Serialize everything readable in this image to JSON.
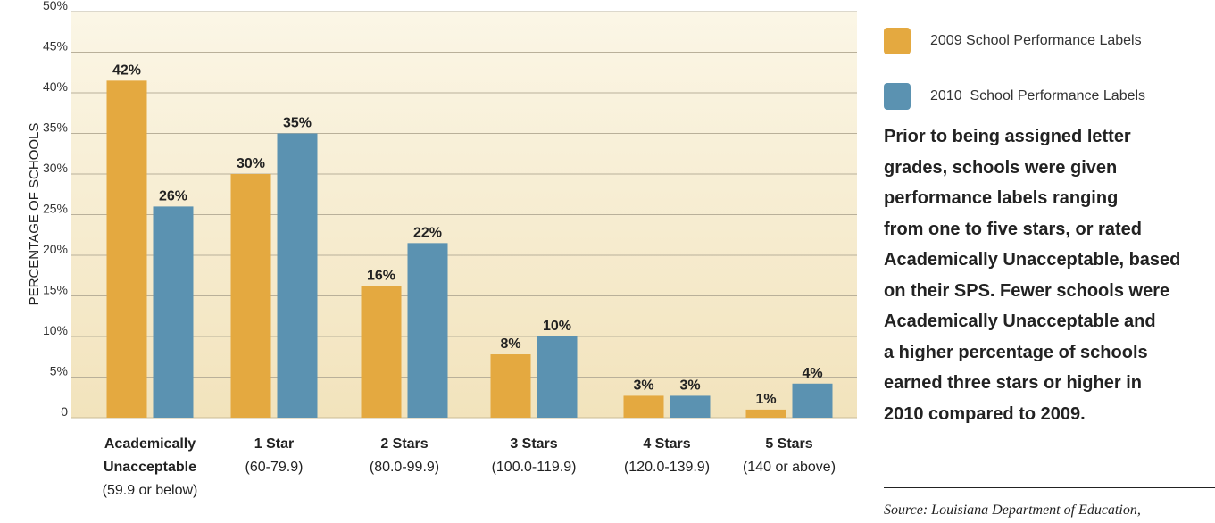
{
  "chart_data": {
    "type": "bar",
    "ylabel": "PERCENTAGE OF SCHOOLS",
    "ylim": [
      0,
      50
    ],
    "y_ticks": [
      "0",
      "5%",
      "10%",
      "15%",
      "20%",
      "25%",
      "30%",
      "35%",
      "40%",
      "45%",
      "50%"
    ],
    "grid": true,
    "legend_position": "right",
    "categories": [
      {
        "name": "Academically Unacceptable",
        "name_lines": [
          "Academically",
          "Unacceptable"
        ],
        "range": "(59.9 or below)"
      },
      {
        "name": "1 Star",
        "name_lines": [
          "1 Star"
        ],
        "range": "(60-79.9)"
      },
      {
        "name": "2 Stars",
        "name_lines": [
          "2 Stars"
        ],
        "range": "(80.0-99.9)"
      },
      {
        "name": "3 Stars",
        "name_lines": [
          "3 Stars"
        ],
        "range": "(100.0-119.9)"
      },
      {
        "name": "4 Stars",
        "name_lines": [
          "4 Stars"
        ],
        "range": "(120.0-139.9)"
      },
      {
        "name": "5 Stars",
        "name_lines": [
          "5 Stars"
        ],
        "range": "(140 or above)"
      }
    ],
    "series": [
      {
        "name": "2009 School Performance Labels",
        "color": "#E4A940",
        "values": [
          41.5,
          30,
          16.2,
          7.8,
          2.7,
          1
        ],
        "labels": [
          "42%",
          "30%",
          "16%",
          "8%",
          "3%",
          "1%"
        ]
      },
      {
        "name": "2010  School Performance Labels",
        "color": "#5B92B1",
        "values": [
          26,
          35,
          21.5,
          10,
          2.7,
          4.2
        ],
        "labels": [
          "26%",
          "35%",
          "22%",
          "10%",
          "3%",
          "4%"
        ]
      }
    ],
    "plot_background": "#F5EBD0"
  },
  "note": {
    "lines": [
      "Prior to being assigned letter",
      "grades, schools were given",
      "performance labels ranging",
      "from one to five stars, or rated",
      "Academically Unacceptable, based",
      "on their SPS. Fewer schools were",
      "Academically Unacceptable and",
      "a higher percentage of schools",
      "earned three stars or higher in",
      "2010 compared to 2009."
    ]
  },
  "source": "Source: Louisiana Department of Education,"
}
